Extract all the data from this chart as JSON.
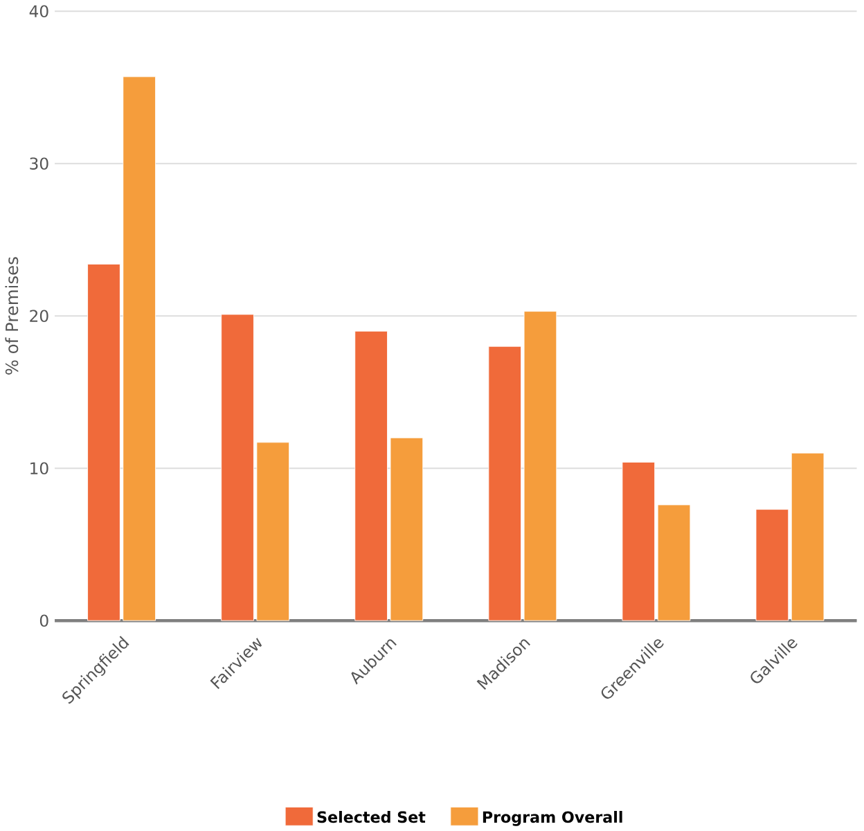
{
  "chart_data": {
    "type": "bar",
    "ylabel": "% of Premises",
    "categories": [
      "Springfield",
      "Fairview",
      "Auburn",
      "Madison",
      "Greenville",
      "Galville"
    ],
    "series": [
      {
        "name": "Selected Set",
        "color": "#f06a3a",
        "values": [
          23.4,
          20.1,
          19.0,
          18.0,
          10.4,
          7.3
        ]
      },
      {
        "name": "Program Overall",
        "color": "#f59d3c",
        "values": [
          35.7,
          11.7,
          12.0,
          20.3,
          7.6,
          11.0
        ]
      }
    ],
    "ylim": [
      0,
      40
    ],
    "yticks": [
      0,
      10,
      20,
      30,
      40
    ],
    "grid": "y",
    "legend": "bottom"
  }
}
